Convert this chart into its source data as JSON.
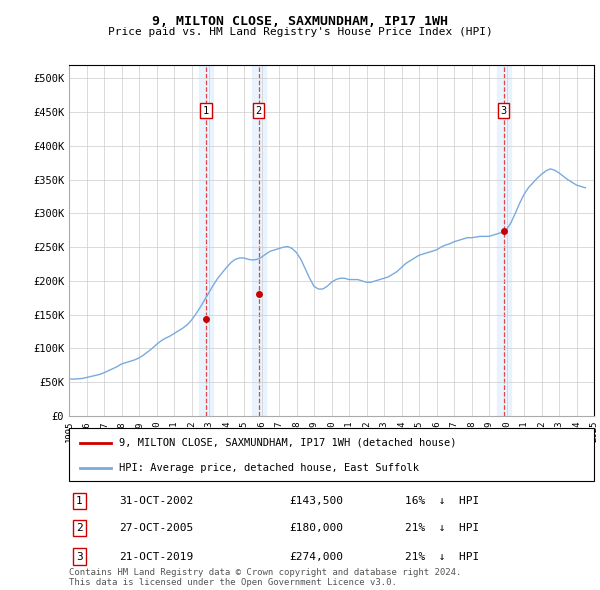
{
  "title1": "9, MILTON CLOSE, SAXMUNDHAM, IP17 1WH",
  "title2": "Price paid vs. HM Land Registry's House Price Index (HPI)",
  "ylim": [
    0,
    520000
  ],
  "yticks": [
    0,
    50000,
    100000,
    150000,
    200000,
    250000,
    300000,
    350000,
    400000,
    450000,
    500000
  ],
  "ytick_labels": [
    "£0",
    "£50K",
    "£100K",
    "£150K",
    "£200K",
    "£250K",
    "£300K",
    "£350K",
    "£400K",
    "£450K",
    "£500K"
  ],
  "bg_color": "#ffffff",
  "plot_bg_color": "#ffffff",
  "grid_color": "#cccccc",
  "sale_color": "#cc0000",
  "hpi_color": "#7aaadd",
  "transaction_bg": "#ddeeff",
  "transactions": [
    {
      "id": 1,
      "date": "31-OCT-2002",
      "price": 143500,
      "pct": "16%",
      "dir": "↓",
      "x_year": 2002.83
    },
    {
      "id": 2,
      "date": "27-OCT-2005",
      "price": 180000,
      "pct": "21%",
      "dir": "↓",
      "x_year": 2005.83
    },
    {
      "id": 3,
      "date": "21-OCT-2019",
      "price": 274000,
      "pct": "21%",
      "dir": "↓",
      "x_year": 2019.83
    }
  ],
  "hpi_years": [
    1995.0,
    1995.25,
    1995.5,
    1995.75,
    1996.0,
    1996.25,
    1996.5,
    1996.75,
    1997.0,
    1997.25,
    1997.5,
    1997.75,
    1998.0,
    1998.25,
    1998.5,
    1998.75,
    1999.0,
    1999.25,
    1999.5,
    1999.75,
    2000.0,
    2000.25,
    2000.5,
    2000.75,
    2001.0,
    2001.25,
    2001.5,
    2001.75,
    2002.0,
    2002.25,
    2002.5,
    2002.75,
    2003.0,
    2003.25,
    2003.5,
    2003.75,
    2004.0,
    2004.25,
    2004.5,
    2004.75,
    2005.0,
    2005.25,
    2005.5,
    2005.75,
    2006.0,
    2006.25,
    2006.5,
    2006.75,
    2007.0,
    2007.25,
    2007.5,
    2007.75,
    2008.0,
    2008.25,
    2008.5,
    2008.75,
    2009.0,
    2009.25,
    2009.5,
    2009.75,
    2010.0,
    2010.25,
    2010.5,
    2010.75,
    2011.0,
    2011.25,
    2011.5,
    2011.75,
    2012.0,
    2012.25,
    2012.5,
    2012.75,
    2013.0,
    2013.25,
    2013.5,
    2013.75,
    2014.0,
    2014.25,
    2014.5,
    2014.75,
    2015.0,
    2015.25,
    2015.5,
    2015.75,
    2016.0,
    2016.25,
    2016.5,
    2016.75,
    2017.0,
    2017.25,
    2017.5,
    2017.75,
    2018.0,
    2018.25,
    2018.5,
    2018.75,
    2019.0,
    2019.25,
    2019.5,
    2019.75,
    2020.0,
    2020.25,
    2020.5,
    2020.75,
    2021.0,
    2021.25,
    2021.5,
    2021.75,
    2022.0,
    2022.25,
    2022.5,
    2022.75,
    2023.0,
    2023.25,
    2023.5,
    2023.75,
    2024.0,
    2024.25,
    2024.5
  ],
  "hpi_values": [
    55000,
    54500,
    55000,
    55500,
    57000,
    58500,
    60000,
    61500,
    64000,
    67000,
    70000,
    73000,
    77000,
    79000,
    81000,
    83000,
    86000,
    90000,
    95000,
    100000,
    106000,
    111000,
    115000,
    118000,
    122000,
    126000,
    130000,
    135000,
    142000,
    151000,
    161000,
    172000,
    183000,
    194000,
    204000,
    212000,
    220000,
    227000,
    232000,
    234000,
    234000,
    232000,
    231000,
    232000,
    235000,
    240000,
    244000,
    246000,
    248000,
    250000,
    251000,
    248000,
    242000,
    232000,
    218000,
    204000,
    192000,
    188000,
    188000,
    192000,
    198000,
    202000,
    204000,
    204000,
    202000,
    202000,
    202000,
    200000,
    198000,
    198000,
    200000,
    202000,
    204000,
    206000,
    210000,
    214000,
    220000,
    226000,
    230000,
    234000,
    238000,
    240000,
    242000,
    244000,
    246000,
    250000,
    253000,
    255000,
    258000,
    260000,
    262000,
    264000,
    264000,
    265000,
    266000,
    266000,
    266000,
    268000,
    270000,
    272000,
    276000,
    286000,
    300000,
    315000,
    328000,
    338000,
    345000,
    352000,
    358000,
    363000,
    366000,
    364000,
    360000,
    355000,
    350000,
    346000,
    342000,
    340000,
    338000
  ],
  "sale_years": [
    2002.83,
    2005.83,
    2019.83
  ],
  "sale_prices": [
    143500,
    180000,
    274000
  ],
  "legend_sale_label": "9, MILTON CLOSE, SAXMUNDHAM, IP17 1WH (detached house)",
  "legend_hpi_label": "HPI: Average price, detached house, East Suffolk",
  "footnote": "Contains HM Land Registry data © Crown copyright and database right 2024.\nThis data is licensed under the Open Government Licence v3.0.",
  "xmin": 1995,
  "xmax": 2025
}
